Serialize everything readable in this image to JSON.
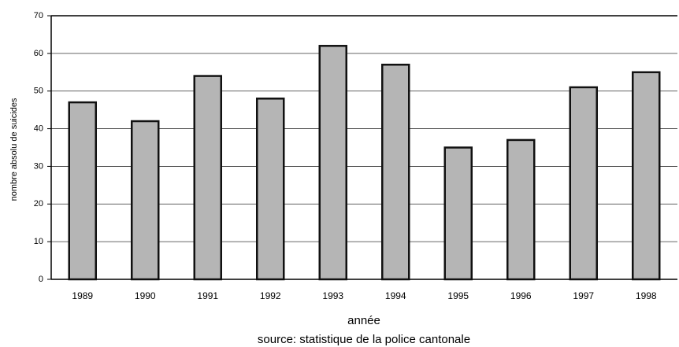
{
  "chart_data": {
    "type": "bar",
    "categories": [
      "1989",
      "1990",
      "1991",
      "1992",
      "1993",
      "1994",
      "1995",
      "1996",
      "1997",
      "1998"
    ],
    "values": [
      47,
      42,
      54,
      48,
      62,
      57,
      35,
      37,
      51,
      55
    ],
    "color": "#b5b5b5",
    "ylim": [
      0,
      70
    ],
    "yticks": [
      0,
      10,
      20,
      30,
      40,
      50,
      60,
      70
    ],
    "grid": true,
    "y_label": "nombre absolu de suicides",
    "x_label": "année",
    "source": "source: statistique de la police cantonale"
  }
}
